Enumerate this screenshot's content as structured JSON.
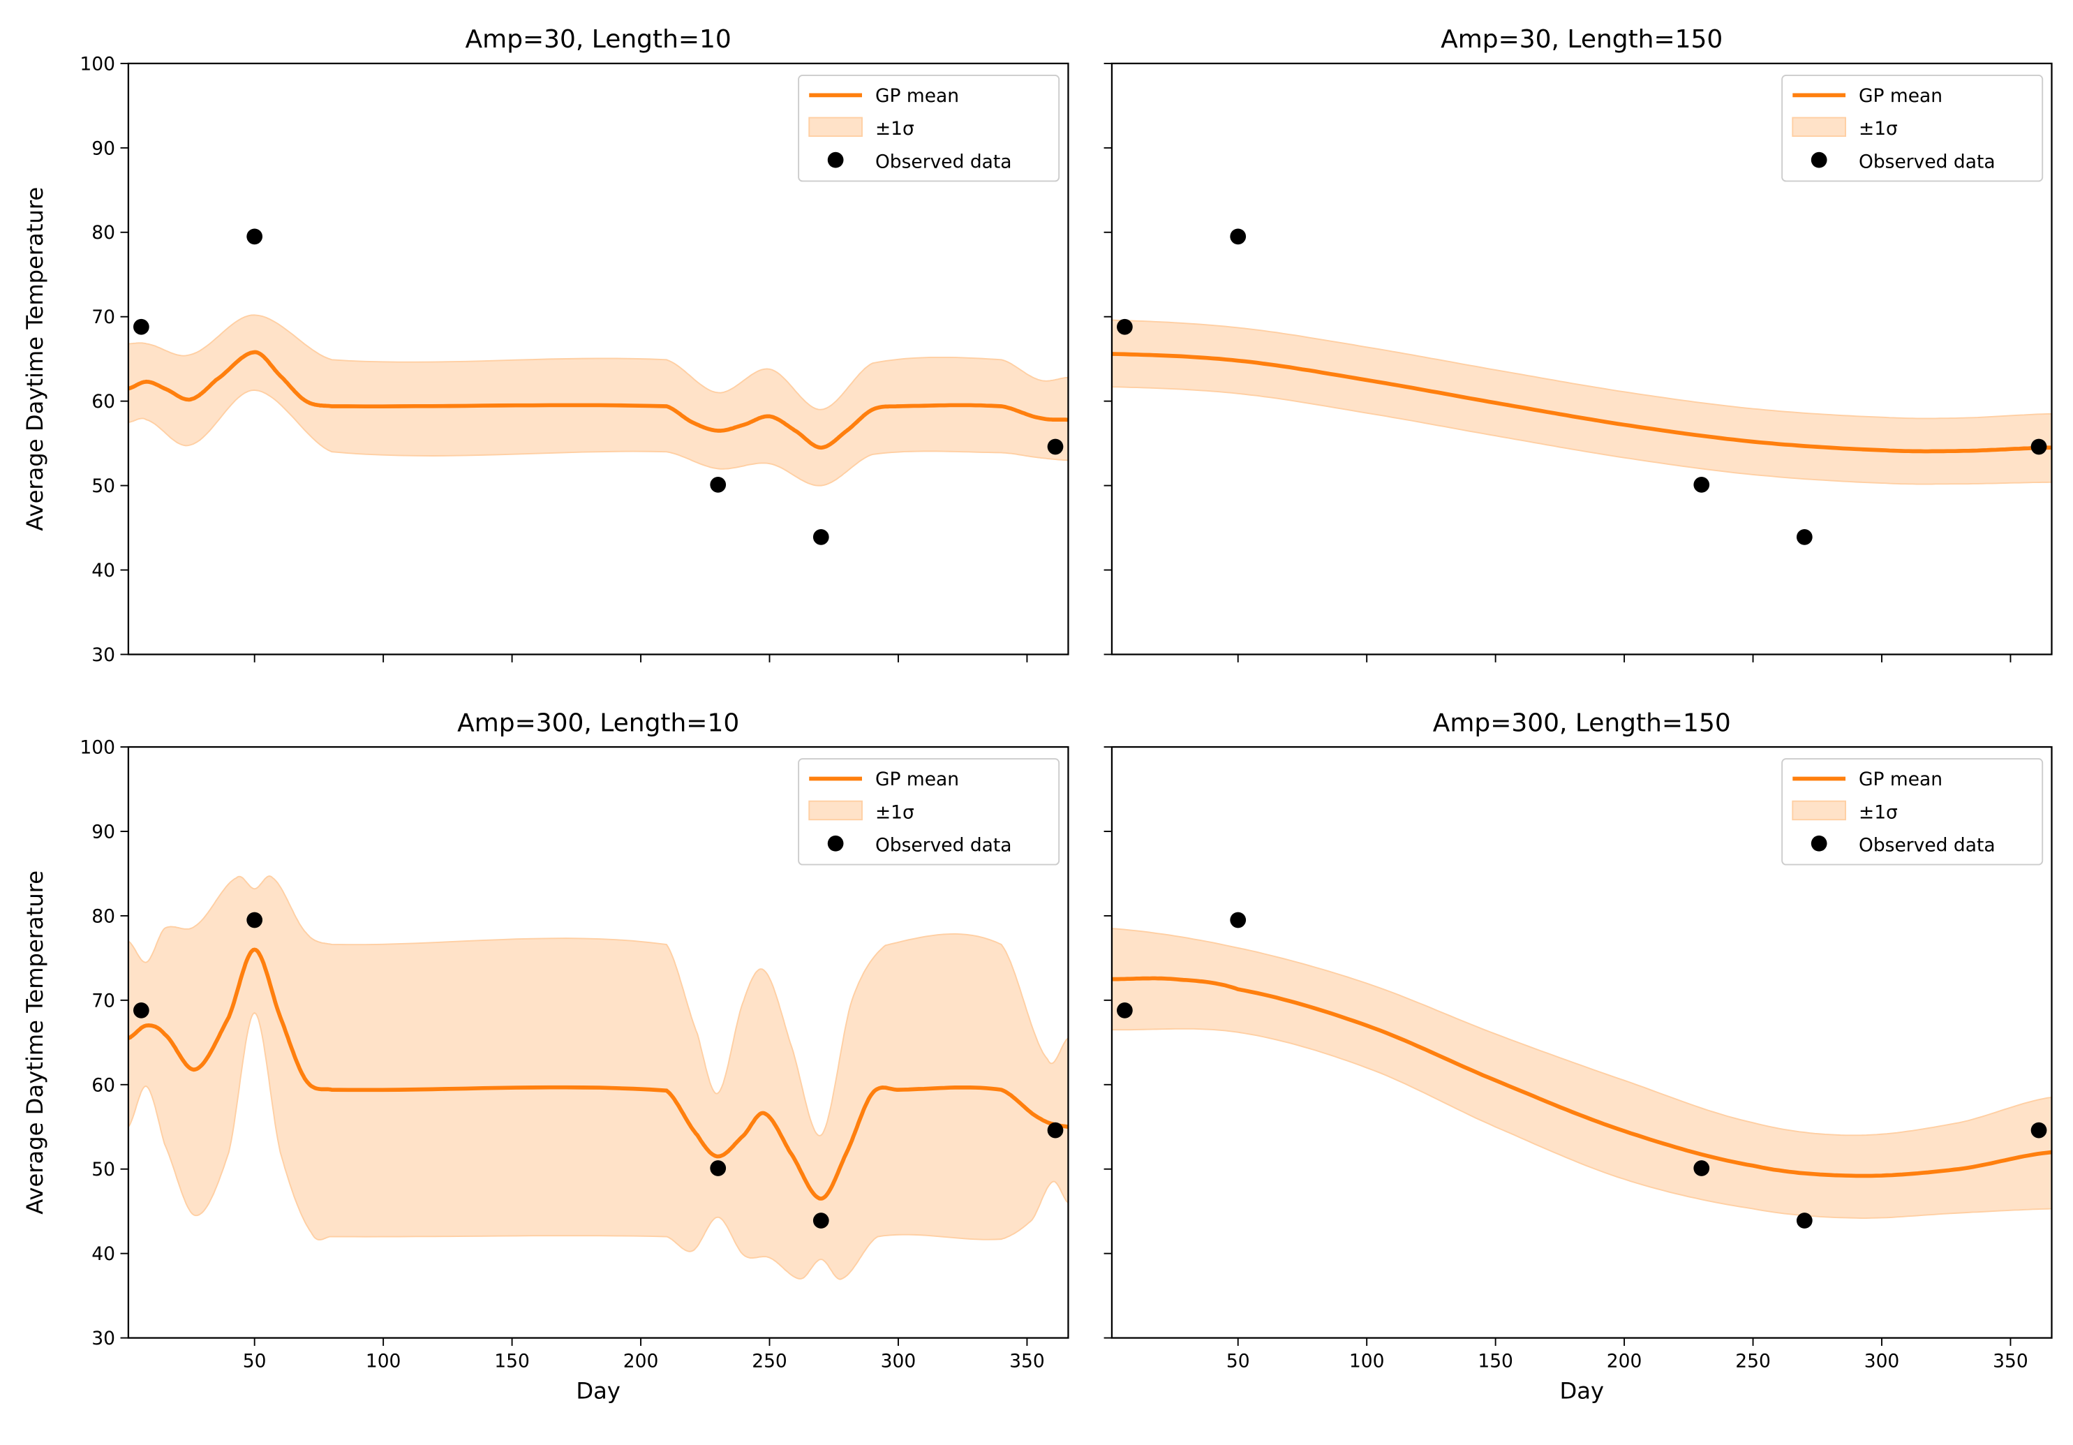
{
  "chart_data": {
    "type": "line",
    "layout": "2x2 grid, shared x and y axes",
    "colors": {
      "mean": "#ff7f0e",
      "band": "#ffe2c8",
      "band_edge": "#ffcfa3",
      "points": "#000000"
    },
    "observed": {
      "x": [
        6,
        50,
        230,
        270,
        361
      ],
      "y": [
        68.8,
        79.5,
        50.1,
        43.9,
        54.6
      ]
    },
    "xlim": [
      1,
      366
    ],
    "ylim": [
      30,
      100
    ],
    "xticks": [
      50,
      100,
      150,
      200,
      250,
      300,
      350
    ],
    "yticks": [
      30,
      40,
      50,
      60,
      70,
      80,
      90,
      100
    ],
    "xlabel": "Day",
    "ylabel": "Average Daytime Temperature",
    "legend": {
      "placement": "upper right",
      "entries": [
        "GP mean",
        "±1σ",
        "Observed data"
      ]
    },
    "panels": [
      {
        "title": "Amp=30, Length=10",
        "mean": {
          "x": [
            1,
            8,
            15,
            25,
            35,
            50,
            60,
            70,
            80,
            210,
            220,
            230,
            240,
            250,
            260,
            270,
            280,
            290,
            300,
            340,
            355,
            366
          ],
          "y": [
            61.5,
            62.3,
            61.5,
            60.2,
            62.5,
            65.8,
            63,
            60,
            59.4,
            59.4,
            57.5,
            56.5,
            57.2,
            58.2,
            56.5,
            54.5,
            56.5,
            59,
            59.4,
            59.4,
            58,
            57.8
          ]
        },
        "upper": {
          "x": [
            1,
            8,
            25,
            50,
            80,
            210,
            230,
            250,
            270,
            290,
            340,
            355,
            366
          ],
          "y": [
            66.8,
            66.8,
            65.5,
            70.2,
            64.9,
            64.9,
            61,
            63.8,
            59,
            64.5,
            64.9,
            62.5,
            62.8
          ]
        },
        "lower": {
          "x": [
            1,
            8,
            25,
            50,
            80,
            210,
            230,
            250,
            270,
            290,
            340,
            355,
            366
          ],
          "y": [
            57.5,
            57.8,
            54.8,
            61.3,
            54,
            54,
            52,
            52.6,
            50,
            53.7,
            53.9,
            53.3,
            53
          ]
        }
      },
      {
        "title": "Amp=30, Length=150",
        "mean": {
          "x": [
            1,
            50,
            100,
            150,
            200,
            250,
            300,
            330,
            366
          ],
          "y": [
            65.6,
            64.8,
            62.5,
            59.8,
            57.2,
            55.2,
            54.2,
            54.1,
            54.5
          ]
        },
        "upper": {
          "x": [
            1,
            50,
            100,
            150,
            200,
            250,
            300,
            330,
            366
          ],
          "y": [
            69.6,
            68.7,
            66.4,
            63.7,
            61.1,
            59.1,
            58.1,
            58,
            58.5
          ]
        },
        "lower": {
          "x": [
            1,
            50,
            100,
            150,
            200,
            250,
            300,
            330,
            366
          ],
          "y": [
            61.7,
            60.9,
            58.6,
            55.9,
            53.3,
            51.3,
            50.3,
            50.2,
            50.4
          ]
        }
      },
      {
        "title": "Amp=300, Length=10",
        "mean": {
          "x": [
            1,
            8,
            15,
            27,
            40,
            50,
            60,
            70,
            80,
            210,
            222,
            230,
            240,
            248,
            258,
            270,
            280,
            290,
            300,
            340,
            355,
            366
          ],
          "y": [
            65.5,
            67,
            66,
            61.8,
            68,
            76,
            68,
            60.5,
            59.4,
            59.3,
            54,
            51.5,
            54,
            56.6,
            52,
            46.5,
            52,
            59,
            59.4,
            59.4,
            56,
            55
          ]
        },
        "upper": {
          "x": [
            1,
            8,
            15,
            27,
            43,
            50,
            57,
            70,
            80,
            210,
            222,
            230,
            240,
            248,
            258,
            270,
            282,
            295,
            340,
            358,
            366
          ],
          "y": [
            77,
            74.5,
            78.5,
            78.8,
            84.5,
            83.2,
            84.5,
            78,
            76.6,
            76.6,
            66,
            59,
            70,
            73.5,
            65,
            54,
            70,
            76.5,
            76.6,
            63,
            65.5
          ]
        },
        "lower": {
          "x": [
            1,
            8,
            15,
            27,
            40,
            50,
            60,
            72,
            80,
            210,
            220,
            230,
            240,
            250,
            262,
            270,
            278,
            292,
            340,
            352,
            360,
            366
          ],
          "y": [
            55,
            59.8,
            53,
            44.5,
            52,
            68.5,
            52,
            42.5,
            42,
            42,
            40.3,
            44.3,
            39.8,
            39.5,
            37,
            39.3,
            37,
            42,
            41.7,
            44,
            48.5,
            46
          ]
        }
      },
      {
        "title": "Amp=300, Length=150",
        "mean": {
          "x": [
            1,
            25,
            50,
            100,
            150,
            200,
            250,
            290,
            330,
            366
          ],
          "y": [
            72.5,
            72.5,
            71.3,
            67,
            60.5,
            54.5,
            50.4,
            49.2,
            50,
            52
          ]
        },
        "upper": {
          "x": [
            1,
            50,
            100,
            150,
            200,
            250,
            290,
            330,
            366
          ],
          "y": [
            78.5,
            76.2,
            72,
            66,
            60.5,
            55.5,
            54,
            55.5,
            58.5
          ]
        },
        "lower": {
          "x": [
            1,
            50,
            100,
            150,
            200,
            250,
            290,
            330,
            366
          ],
          "y": [
            66.5,
            66.2,
            62,
            55,
            48.8,
            45.3,
            44.2,
            44.8,
            45.3
          ]
        }
      }
    ]
  }
}
